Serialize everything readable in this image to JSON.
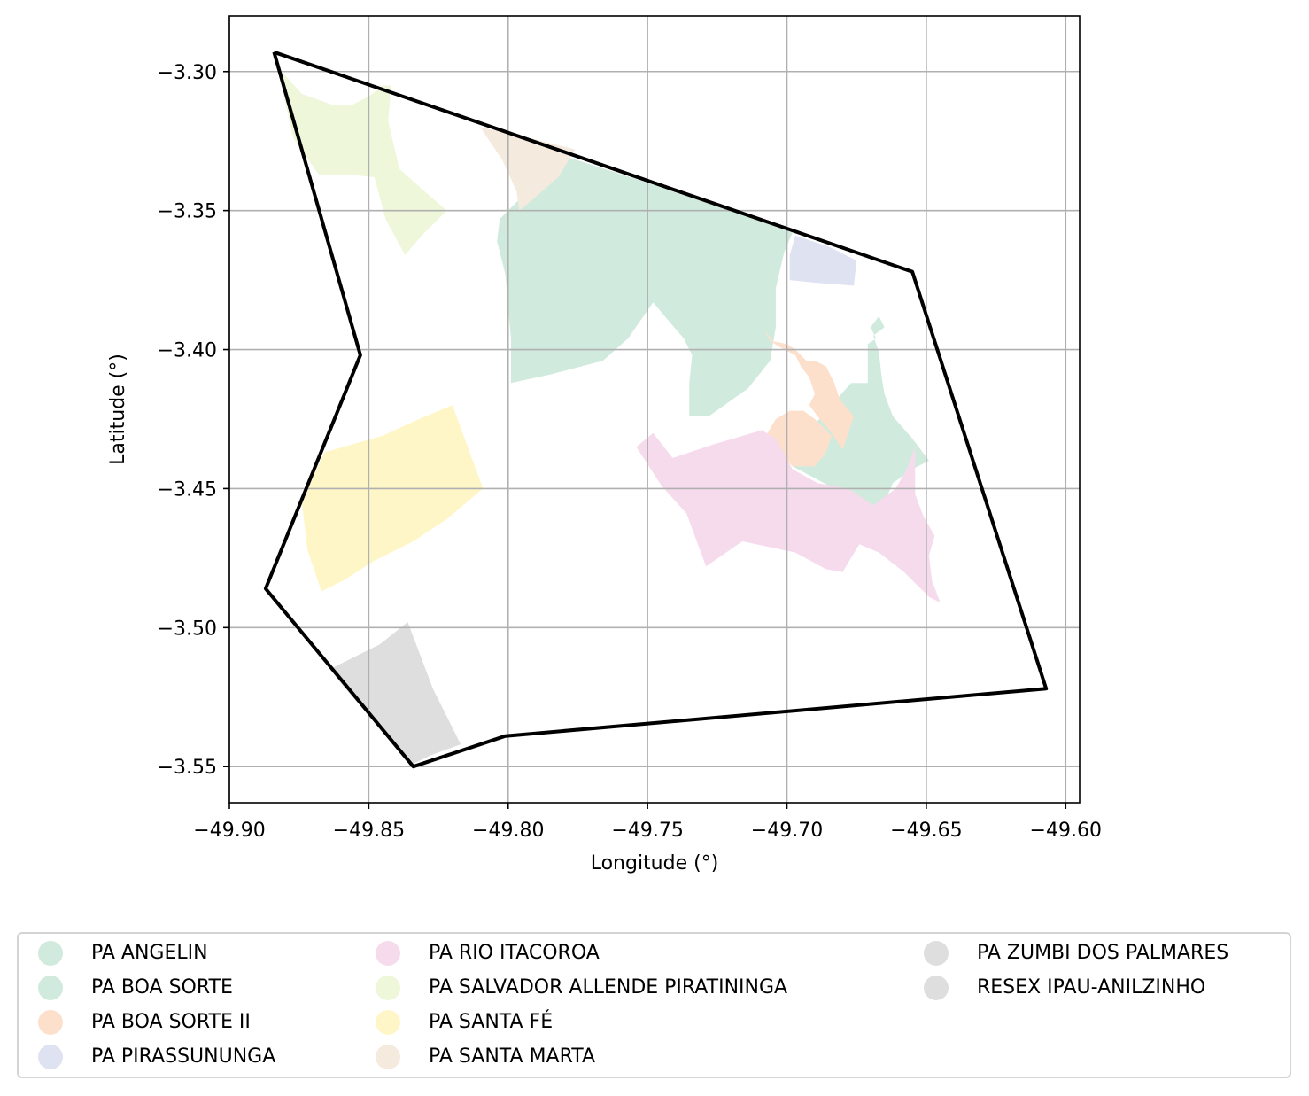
{
  "chart_data": {
    "type": "map",
    "xlabel": "Longitude (°)",
    "ylabel": "Latitude (°)",
    "xlim": [
      -49.9,
      -49.595
    ],
    "ylim": [
      -3.563,
      -3.28
    ],
    "xticks": [
      -49.9,
      -49.85,
      -49.8,
      -49.75,
      -49.7,
      -49.65,
      -49.6
    ],
    "yticks": [
      -3.3,
      -3.35,
      -3.4,
      -3.45,
      -3.5,
      -3.55
    ],
    "xtick_labels": [
      "−49.90",
      "−49.85",
      "−49.80",
      "−49.75",
      "−49.70",
      "−49.65",
      "−49.60"
    ],
    "ytick_labels": [
      "−3.30",
      "−3.35",
      "−3.40",
      "−3.45",
      "−3.50",
      "−3.55"
    ],
    "grid": true,
    "legend_placement": "bottom",
    "boundary": {
      "color": "#000000",
      "coords": [
        [
          -49.884,
          -3.293
        ],
        [
          -49.853,
          -3.402
        ],
        [
          -49.887,
          -3.486
        ],
        [
          -49.834,
          -3.55
        ],
        [
          -49.801,
          -3.539
        ],
        [
          -49.607,
          -3.522
        ],
        [
          -49.655,
          -3.372
        ],
        [
          -49.884,
          -3.293
        ]
      ]
    },
    "areas": [
      {
        "name": "PA ANGELIN",
        "color": "#d0ebdd",
        "polygons": [
          [
            [
              -49.691,
              -3.428
            ],
            [
              -49.677,
              -3.412
            ],
            [
              -49.671,
              -3.412
            ],
            [
              -49.671,
              -3.398
            ],
            [
              -49.668,
              -3.396
            ],
            [
              -49.67,
              -3.392
            ],
            [
              -49.667,
              -3.388
            ],
            [
              -49.665,
              -3.392
            ],
            [
              -49.669,
              -3.395
            ],
            [
              -49.667,
              -3.401
            ],
            [
              -49.666,
              -3.41
            ],
            [
              -49.665,
              -3.416
            ],
            [
              -49.662,
              -3.424
            ],
            [
              -49.655,
              -3.432
            ],
            [
              -49.649,
              -3.44
            ],
            [
              -49.655,
              -3.443
            ],
            [
              -49.662,
              -3.448
            ],
            [
              -49.665,
              -3.455
            ],
            [
              -49.668,
              -3.458
            ],
            [
              -49.683,
              -3.45
            ],
            [
              -49.698,
              -3.442
            ],
            [
              -49.701,
              -3.437
            ],
            [
              -49.695,
              -3.432
            ]
          ]
        ]
      },
      {
        "name": "PA BOA SORTE",
        "color": "#d0ebdd",
        "polygons": [
          [
            [
              -49.778,
              -3.331
            ],
            [
              -49.792,
              -3.342
            ],
            [
              -49.803,
              -3.353
            ],
            [
              -49.804,
              -3.361
            ],
            [
              -49.801,
              -3.373
            ],
            [
              -49.799,
              -3.396
            ],
            [
              -49.799,
              -3.412
            ],
            [
              -49.785,
              -3.409
            ],
            [
              -49.766,
              -3.404
            ],
            [
              -49.757,
              -3.396
            ],
            [
              -49.748,
              -3.383
            ],
            [
              -49.743,
              -3.389
            ],
            [
              -49.737,
              -3.396
            ],
            [
              -49.734,
              -3.402
            ],
            [
              -49.735,
              -3.412
            ],
            [
              -49.735,
              -3.424
            ],
            [
              -49.728,
              -3.424
            ],
            [
              -49.714,
              -3.414
            ],
            [
              -49.706,
              -3.404
            ],
            [
              -49.704,
              -3.392
            ],
            [
              -49.704,
              -3.378
            ],
            [
              -49.701,
              -3.365
            ],
            [
              -49.698,
              -3.358
            ],
            [
              -49.72,
              -3.35
            ],
            [
              -49.75,
              -3.34
            ]
          ]
        ]
      },
      {
        "name": "PA BOA SORTE II",
        "color": "#fde0cc",
        "polygons": [
          [
            [
              -49.708,
              -3.393
            ],
            [
              -49.706,
              -3.397
            ],
            [
              -49.701,
              -3.4
            ],
            [
              -49.697,
              -3.402
            ],
            [
              -49.695,
              -3.406
            ],
            [
              -49.692,
              -3.41
            ],
            [
              -49.69,
              -3.416
            ],
            [
              -49.692,
              -3.42
            ],
            [
              -49.689,
              -3.424
            ],
            [
              -49.684,
              -3.43
            ],
            [
              -49.68,
              -3.436
            ],
            [
              -49.676,
              -3.424
            ],
            [
              -49.681,
              -3.418
            ],
            [
              -49.683,
              -3.412
            ],
            [
              -49.686,
              -3.406
            ],
            [
              -49.69,
              -3.404
            ],
            [
              -49.693,
              -3.404
            ],
            [
              -49.697,
              -3.4
            ],
            [
              -49.7,
              -3.398
            ],
            [
              -49.705,
              -3.397
            ]
          ],
          [
            [
              -49.69,
              -3.425
            ],
            [
              -49.684,
              -3.431
            ],
            [
              -49.686,
              -3.437
            ],
            [
              -49.69,
              -3.442
            ],
            [
              -49.698,
              -3.442
            ],
            [
              -49.704,
              -3.436
            ],
            [
              -49.707,
              -3.43
            ],
            [
              -49.704,
              -3.425
            ],
            [
              -49.699,
              -3.422
            ],
            [
              -49.694,
              -3.422
            ]
          ]
        ]
      },
      {
        "name": "PA PIRASSUNUNGA",
        "color": "#dee2f1",
        "polygons": [
          [
            [
              -49.697,
              -3.359
            ],
            [
              -49.685,
              -3.363
            ],
            [
              -49.675,
              -3.368
            ],
            [
              -49.676,
              -3.377
            ],
            [
              -49.689,
              -3.376
            ],
            [
              -49.699,
              -3.375
            ],
            [
              -49.699,
              -3.366
            ]
          ]
        ]
      },
      {
        "name": "PA RIO ITACOROA",
        "color": "#f6dbed",
        "polygons": [
          [
            [
              -49.754,
              -3.435
            ],
            [
              -49.748,
              -3.43
            ],
            [
              -49.741,
              -3.439
            ],
            [
              -49.726,
              -3.434
            ],
            [
              -49.709,
              -3.429
            ],
            [
              -49.704,
              -3.432
            ],
            [
              -49.698,
              -3.443
            ],
            [
              -49.689,
              -3.448
            ],
            [
              -49.678,
              -3.45
            ],
            [
              -49.669,
              -3.456
            ],
            [
              -49.661,
              -3.45
            ],
            [
              -49.657,
              -3.443
            ],
            [
              -49.654,
              -3.435
            ],
            [
              -49.654,
              -3.452
            ],
            [
              -49.651,
              -3.46
            ],
            [
              -49.647,
              -3.467
            ],
            [
              -49.649,
              -3.474
            ],
            [
              -49.648,
              -3.483
            ],
            [
              -49.645,
              -3.491
            ],
            [
              -49.649,
              -3.489
            ],
            [
              -49.658,
              -3.48
            ],
            [
              -49.667,
              -3.473
            ],
            [
              -49.674,
              -3.47
            ],
            [
              -49.68,
              -3.48
            ],
            [
              -49.686,
              -3.479
            ],
            [
              -49.697,
              -3.473
            ],
            [
              -49.716,
              -3.469
            ],
            [
              -49.729,
              -3.478
            ],
            [
              -49.736,
              -3.459
            ],
            [
              -49.745,
              -3.449
            ]
          ]
        ]
      },
      {
        "name": "PA SALVADOR ALLENDE PIRATININGA",
        "color": "#eef7da",
        "polygons": [
          [
            [
              -49.883,
              -3.298
            ],
            [
              -49.874,
              -3.308
            ],
            [
              -49.863,
              -3.312
            ],
            [
              -49.856,
              -3.312
            ],
            [
              -49.85,
              -3.309
            ],
            [
              -49.845,
              -3.305
            ],
            [
              -49.842,
              -3.305
            ],
            [
              -49.843,
              -3.318
            ],
            [
              -49.839,
              -3.335
            ],
            [
              -49.829,
              -3.344
            ],
            [
              -49.822,
              -3.35
            ],
            [
              -49.831,
              -3.359
            ],
            [
              -49.837,
              -3.366
            ],
            [
              -49.844,
              -3.353
            ],
            [
              -49.848,
              -3.338
            ],
            [
              -49.858,
              -3.337
            ],
            [
              -49.868,
              -3.337
            ],
            [
              -49.877,
              -3.324
            ]
          ]
        ]
      },
      {
        "name": "PA SANTA FÉ",
        "color": "#fff6c8",
        "polygons": [
          [
            [
              -49.874,
              -3.455
            ],
            [
              -49.866,
              -3.437
            ],
            [
              -49.845,
              -3.431
            ],
            [
              -49.832,
              -3.425
            ],
            [
              -49.82,
              -3.42
            ],
            [
              -49.809,
              -3.45
            ],
            [
              -49.822,
              -3.461
            ],
            [
              -49.834,
              -3.469
            ],
            [
              -49.848,
              -3.476
            ],
            [
              -49.859,
              -3.483
            ],
            [
              -49.867,
              -3.487
            ],
            [
              -49.872,
              -3.472
            ]
          ]
        ]
      },
      {
        "name": "PA SANTA MARTA",
        "color": "#f5eade",
        "polygons": [
          [
            [
              -49.81,
              -3.32
            ],
            [
              -49.792,
              -3.324
            ],
            [
              -49.776,
              -3.328
            ],
            [
              -49.782,
              -3.338
            ],
            [
              -49.79,
              -3.345
            ],
            [
              -49.796,
              -3.35
            ],
            [
              -49.797,
              -3.343
            ],
            [
              -49.802,
              -3.332
            ]
          ]
        ]
      },
      {
        "name": "PA ZUMBI DOS PALMARES",
        "color": "#dedede",
        "polygons": [
          [
            [
              -49.864,
              -3.515
            ],
            [
              -49.846,
              -3.506
            ],
            [
              -49.836,
              -3.498
            ],
            [
              -49.827,
              -3.522
            ],
            [
              -49.817,
              -3.542
            ],
            [
              -49.828,
              -3.546
            ],
            [
              -49.834,
              -3.549
            ],
            [
              -49.848,
              -3.534
            ],
            [
              -49.86,
              -3.52
            ]
          ]
        ]
      },
      {
        "name": "RESEX IPAU-ANILZINHO",
        "color": "#dedede",
        "polygons": []
      }
    ]
  }
}
